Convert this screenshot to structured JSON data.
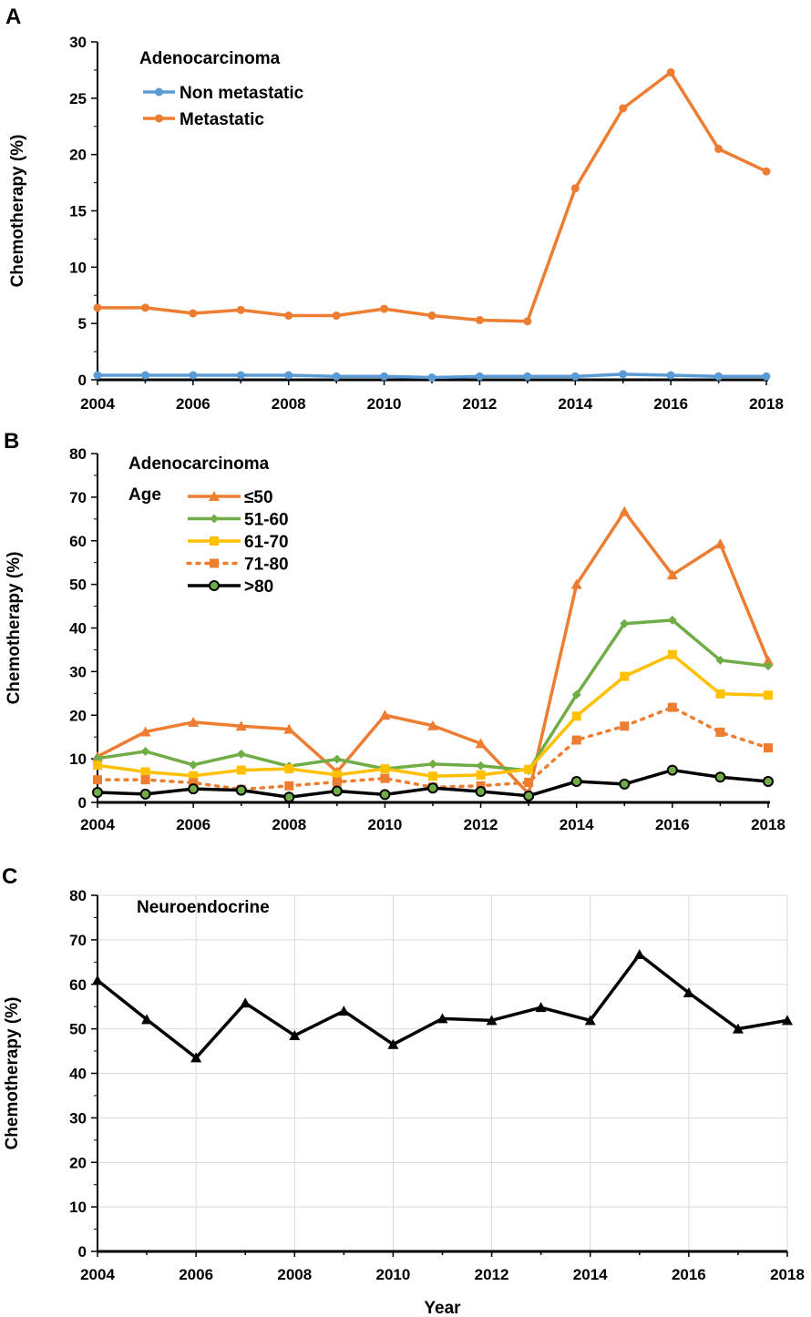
{
  "chart_data": [
    {
      "panel_label": "A",
      "type": "line",
      "title": "Adenocarcinoma",
      "legend_title": "",
      "ylabel": "Chemotherapy (%)",
      "xlabel": "",
      "ylim": [
        0,
        30
      ],
      "yticks": [
        "0",
        "5",
        "10",
        "15",
        "20",
        "25",
        "30"
      ],
      "xticks": [
        "2004",
        "2006",
        "2008",
        "2010",
        "2012",
        "2014",
        "2016",
        "2018"
      ],
      "grid": false,
      "legend_position": "top-left",
      "x": [
        2004,
        2005,
        2006,
        2007,
        2008,
        2009,
        2010,
        2011,
        2012,
        2013,
        2014,
        2015,
        2016,
        2017,
        2018
      ],
      "series": [
        {
          "name": "Non metastatic",
          "color": "#5B9BD5",
          "marker": "circle",
          "dash": false,
          "values": [
            0.4,
            0.4,
            0.4,
            0.4,
            0.4,
            0.3,
            0.3,
            0.2,
            0.3,
            0.3,
            0.3,
            0.5,
            0.4,
            0.3,
            0.3
          ]
        },
        {
          "name": "Metastatic",
          "color": "#ED7D31",
          "marker": "circle",
          "dash": false,
          "values": [
            6.4,
            6.4,
            5.9,
            6.2,
            5.7,
            5.7,
            6.3,
            5.7,
            5.3,
            5.2,
            17.0,
            24.1,
            27.3,
            20.5,
            18.5
          ]
        }
      ]
    },
    {
      "panel_label": "B",
      "type": "line",
      "title": "Adenocarcinoma",
      "legend_title": "Age",
      "ylabel": "Chemotherapy (%)",
      "xlabel": "",
      "ylim": [
        0,
        80
      ],
      "yticks": [
        "0",
        "10",
        "20",
        "30",
        "40",
        "50",
        "60",
        "70",
        "80"
      ],
      "xticks": [
        "2004",
        "2006",
        "2008",
        "2010",
        "2012",
        "2014",
        "2016",
        "2018"
      ],
      "grid": false,
      "legend_position": "top-left",
      "x": [
        2004,
        2005,
        2006,
        2007,
        2008,
        2009,
        2010,
        2011,
        2012,
        2013,
        2014,
        2015,
        2016,
        2017,
        2018
      ],
      "series": [
        {
          "name": "≤50",
          "color": "#ED7D31",
          "marker": "triangle",
          "dash": false,
          "values": [
            10.5,
            16.2,
            18.4,
            17.5,
            16.8,
            7.0,
            20.0,
            17.6,
            13.5,
            2.0,
            50.0,
            66.7,
            52.2,
            59.3,
            32.5
          ]
        },
        {
          "name": "51-60",
          "color": "#70AD47",
          "marker": "diamond",
          "dash": false,
          "values": [
            10.1,
            11.7,
            8.6,
            11.1,
            8.3,
            9.9,
            7.7,
            8.8,
            8.4,
            7.3,
            24.7,
            41.0,
            41.8,
            32.6,
            31.3
          ]
        },
        {
          "name": "61-70",
          "color": "#FFC000",
          "marker": "square",
          "dash": false,
          "values": [
            8.5,
            7.0,
            6.1,
            7.4,
            7.7,
            6.3,
            7.7,
            6.0,
            6.3,
            7.6,
            19.8,
            28.9,
            33.9,
            24.9,
            24.6
          ]
        },
        {
          "name": "71-80",
          "color": "#ED7D31",
          "marker": "square",
          "dash": true,
          "values": [
            5.2,
            5.2,
            4.5,
            3.0,
            3.8,
            4.7,
            5.5,
            3.5,
            3.8,
            4.6,
            14.3,
            17.5,
            21.8,
            16.1,
            12.5
          ]
        },
        {
          "name": ">80",
          "color": "#000000",
          "marker": "circle-green",
          "dash": false,
          "values": [
            2.3,
            1.9,
            3.1,
            2.8,
            1.2,
            2.6,
            1.8,
            3.3,
            2.5,
            1.5,
            4.8,
            4.2,
            7.4,
            5.8,
            4.8
          ]
        }
      ]
    },
    {
      "panel_label": "C",
      "type": "line",
      "title": "Neuroendocrine",
      "legend_title": "",
      "ylabel": "Chemotherapy (%)",
      "xlabel": "Year",
      "ylim": [
        0,
        80
      ],
      "yticks": [
        "0",
        "10",
        "20",
        "30",
        "40",
        "50",
        "60",
        "70",
        "80"
      ],
      "xticks": [
        "2004",
        "2006",
        "2008",
        "2010",
        "2012",
        "2014",
        "2016",
        "2018"
      ],
      "grid": true,
      "legend_position": "none",
      "x": [
        2004,
        2005,
        2006,
        2007,
        2008,
        2009,
        2010,
        2011,
        2012,
        2013,
        2014,
        2015,
        2016,
        2017,
        2018
      ],
      "series": [
        {
          "name": "Neuroendocrine",
          "color": "#000000",
          "marker": "triangle",
          "dash": false,
          "values": [
            60.9,
            52.1,
            43.5,
            55.8,
            48.5,
            54.0,
            46.5,
            52.3,
            51.9,
            54.8,
            51.9,
            66.7,
            58.1,
            50.0,
            51.9
          ]
        }
      ]
    }
  ]
}
